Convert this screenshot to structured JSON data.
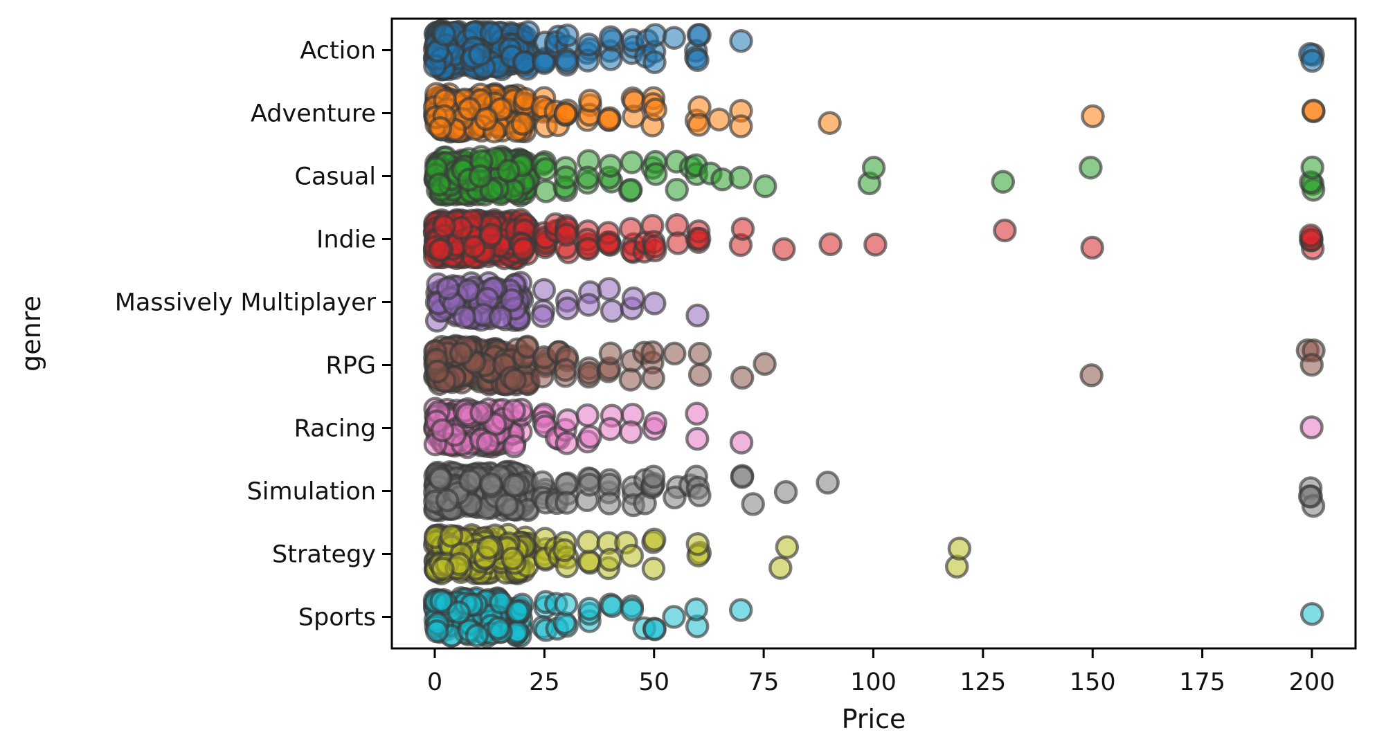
{
  "chart_data": {
    "type": "scatter",
    "variant": "strip-plot",
    "title": "",
    "xlabel": "Price",
    "ylabel": "genre",
    "x_ticks": [
      0,
      25,
      50,
      75,
      100,
      125,
      150,
      175,
      200
    ],
    "xlim": [
      -10,
      210
    ],
    "grid": false,
    "legend": "none",
    "categories": [
      "Action",
      "Adventure",
      "Casual",
      "Indie",
      "Massively Multiplayer",
      "RPG",
      "Racing",
      "Simulation",
      "Strategy",
      "Sports"
    ],
    "marker": {
      "radius": 15,
      "fill_alpha": 0.55,
      "edge_color": "#3a3a3a",
      "edge_alpha": 0.65,
      "edge_width": 4.5
    },
    "axis_color": "#000000",
    "series": [
      {
        "name": "Action",
        "color": "#1f77b4",
        "cluster": {
          "min": 0,
          "max": 21.5,
          "count": 260
        },
        "tiers": [
          [
            25,
            5
          ],
          [
            28,
            3
          ],
          [
            30,
            5
          ],
          [
            35,
            4
          ],
          [
            40,
            4
          ],
          [
            45,
            3
          ],
          [
            48,
            2
          ],
          [
            50,
            3
          ],
          [
            55,
            1
          ],
          [
            60,
            5
          ],
          [
            70,
            1
          ],
          [
            200,
            3
          ]
        ]
      },
      {
        "name": "Adventure",
        "color": "#ff7f0e",
        "cluster": {
          "min": 0,
          "max": 21.5,
          "count": 230
        },
        "tiers": [
          [
            25,
            5
          ],
          [
            28,
            2
          ],
          [
            30,
            4
          ],
          [
            35,
            4
          ],
          [
            40,
            3
          ],
          [
            45,
            3
          ],
          [
            50,
            4
          ],
          [
            60,
            3
          ],
          [
            65,
            1
          ],
          [
            70,
            2
          ],
          [
            90,
            1
          ],
          [
            150,
            1
          ],
          [
            200,
            2
          ]
        ]
      },
      {
        "name": "Casual",
        "color": "#2ca02c",
        "cluster": {
          "min": 0,
          "max": 21.5,
          "count": 210
        },
        "tiers": [
          [
            25,
            4
          ],
          [
            30,
            4
          ],
          [
            35,
            3
          ],
          [
            40,
            3
          ],
          [
            45,
            3
          ],
          [
            50,
            3
          ],
          [
            55,
            2
          ],
          [
            58,
            1
          ],
          [
            60,
            2
          ],
          [
            63,
            1
          ],
          [
            66,
            1
          ],
          [
            70,
            1
          ],
          [
            75,
            1
          ],
          [
            99,
            1
          ],
          [
            100,
            1
          ],
          [
            130,
            1
          ],
          [
            150,
            1
          ],
          [
            200,
            4
          ]
        ]
      },
      {
        "name": "Indie",
        "color": "#d62728",
        "cluster": {
          "min": 0,
          "max": 21.5,
          "count": 320
        },
        "tiers": [
          [
            25,
            6
          ],
          [
            28,
            3
          ],
          [
            30,
            6
          ],
          [
            35,
            5
          ],
          [
            40,
            5
          ],
          [
            45,
            4
          ],
          [
            48,
            2
          ],
          [
            50,
            4
          ],
          [
            55,
            2
          ],
          [
            60,
            4
          ],
          [
            70,
            2
          ],
          [
            80,
            1
          ],
          [
            90,
            1
          ],
          [
            100,
            1
          ],
          [
            130,
            1
          ],
          [
            150,
            1
          ],
          [
            200,
            5
          ]
        ]
      },
      {
        "name": "Massively Multiplayer",
        "color": "#9467bd",
        "cluster": {
          "min": 0,
          "max": 20,
          "count": 85
        },
        "tiers": [
          [
            25,
            3
          ],
          [
            30,
            2
          ],
          [
            35,
            2
          ],
          [
            40,
            2
          ],
          [
            45,
            2
          ],
          [
            50,
            1
          ],
          [
            60,
            1
          ]
        ]
      },
      {
        "name": "RPG",
        "color": "#8c564b",
        "cluster": {
          "min": 0,
          "max": 21.5,
          "count": 170
        },
        "tiers": [
          [
            25,
            5
          ],
          [
            28,
            2
          ],
          [
            30,
            4
          ],
          [
            35,
            3
          ],
          [
            40,
            3
          ],
          [
            45,
            2
          ],
          [
            48,
            1
          ],
          [
            50,
            3
          ],
          [
            55,
            1
          ],
          [
            60,
            2
          ],
          [
            70,
            1
          ],
          [
            75,
            1
          ],
          [
            150,
            1
          ],
          [
            199,
            1
          ],
          [
            200,
            2
          ]
        ]
      },
      {
        "name": "Racing",
        "color": "#e377c2",
        "cluster": {
          "min": 0,
          "max": 20,
          "count": 120
        },
        "tiers": [
          [
            25,
            4
          ],
          [
            28,
            2
          ],
          [
            30,
            3
          ],
          [
            35,
            3
          ],
          [
            40,
            2
          ],
          [
            45,
            2
          ],
          [
            50,
            2
          ],
          [
            60,
            2
          ],
          [
            70,
            1
          ],
          [
            200,
            1
          ]
        ]
      },
      {
        "name": "Simulation",
        "color": "#7f7f7f",
        "cluster": {
          "min": 0,
          "max": 21.5,
          "count": 210
        },
        "tiers": [
          [
            25,
            5
          ],
          [
            28,
            2
          ],
          [
            30,
            4
          ],
          [
            35,
            4
          ],
          [
            40,
            4
          ],
          [
            45,
            3
          ],
          [
            48,
            2
          ],
          [
            50,
            4
          ],
          [
            55,
            2
          ],
          [
            58,
            1
          ],
          [
            60,
            3
          ],
          [
            70,
            2
          ],
          [
            73,
            1
          ],
          [
            80,
            1
          ],
          [
            90,
            1
          ],
          [
            200,
            4
          ]
        ]
      },
      {
        "name": "Strategy",
        "color": "#bcbd22",
        "cluster": {
          "min": 0,
          "max": 21.5,
          "count": 190
        },
        "tiers": [
          [
            25,
            5
          ],
          [
            28,
            2
          ],
          [
            30,
            4
          ],
          [
            35,
            3
          ],
          [
            40,
            3
          ],
          [
            44,
            1
          ],
          [
            45,
            1
          ],
          [
            50,
            3
          ],
          [
            60,
            3
          ],
          [
            79,
            1
          ],
          [
            80,
            1
          ],
          [
            119,
            1
          ],
          [
            120,
            1
          ]
        ]
      },
      {
        "name": "Sports",
        "color": "#17becf",
        "cluster": {
          "min": 0,
          "max": 20,
          "count": 130
        },
        "tiers": [
          [
            25,
            4
          ],
          [
            28,
            2
          ],
          [
            30,
            3
          ],
          [
            35,
            3
          ],
          [
            40,
            2
          ],
          [
            45,
            2
          ],
          [
            48,
            1
          ],
          [
            50,
            2
          ],
          [
            55,
            1
          ],
          [
            60,
            2
          ],
          [
            70,
            1
          ],
          [
            200,
            1
          ]
        ]
      }
    ]
  }
}
